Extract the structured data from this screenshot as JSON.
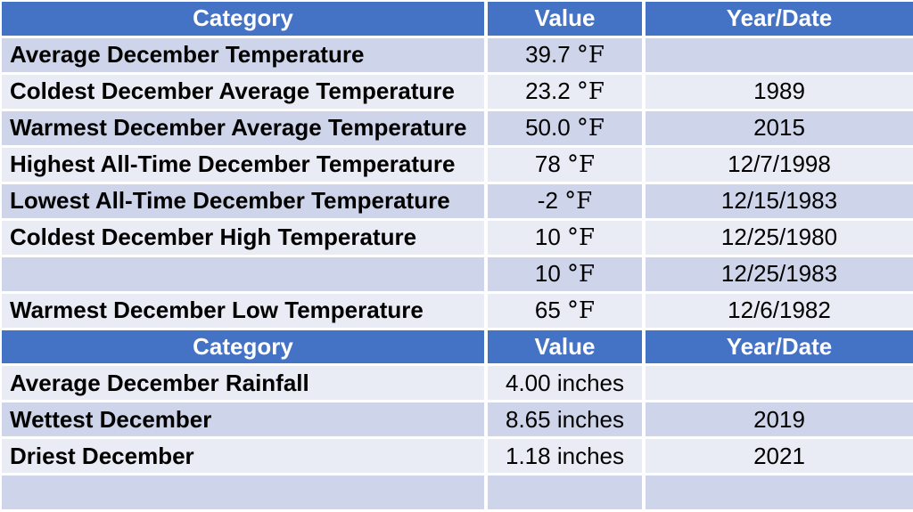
{
  "chart_data": {
    "type": "table",
    "columns": [
      "Category",
      "Value",
      "Year/Date"
    ],
    "sections": [
      {
        "name": "december-temperature-statistics",
        "rows": [
          {
            "category": "Average December Temperature",
            "value": "39.7 °F",
            "year_date": ""
          },
          {
            "category": "Coldest December Average Temperature",
            "value": "23.2 °F",
            "year_date": "1989"
          },
          {
            "category": "Warmest December Average Temperature",
            "value": "50.0 °F",
            "year_date": "2015"
          },
          {
            "category": "Highest All-Time December Temperature",
            "value": "78 °F",
            "year_date": "12/7/1998"
          },
          {
            "category": "Lowest All-Time December Temperature",
            "value": "-2 °F",
            "year_date": "12/15/1983"
          },
          {
            "category": "Coldest December High Temperature",
            "value": "10 °F",
            "year_date": "12/25/1980"
          },
          {
            "category": "",
            "value": "10 °F",
            "year_date": "12/25/1983"
          },
          {
            "category": "Warmest December Low Temperature",
            "value": "65 °F",
            "year_date": "12/6/1982"
          }
        ]
      },
      {
        "name": "december-rainfall-statistics",
        "rows": [
          {
            "category": "Average December Rainfall",
            "value": "4.00 inches",
            "year_date": ""
          },
          {
            "category": "Wettest December",
            "value": "8.65 inches",
            "year_date": "2019"
          },
          {
            "category": "Driest December",
            "value": "1.18 inches",
            "year_date": "2021"
          },
          {
            "category": "",
            "value": "",
            "year_date": ""
          }
        ]
      }
    ]
  },
  "colors": {
    "header_bg": "#4472C4",
    "band_dark": "#CED4E9",
    "band_light": "#E9EBF5",
    "header_text": "#FFFFFF",
    "body_text": "#000000",
    "grid_line": "#FFFFFF"
  }
}
